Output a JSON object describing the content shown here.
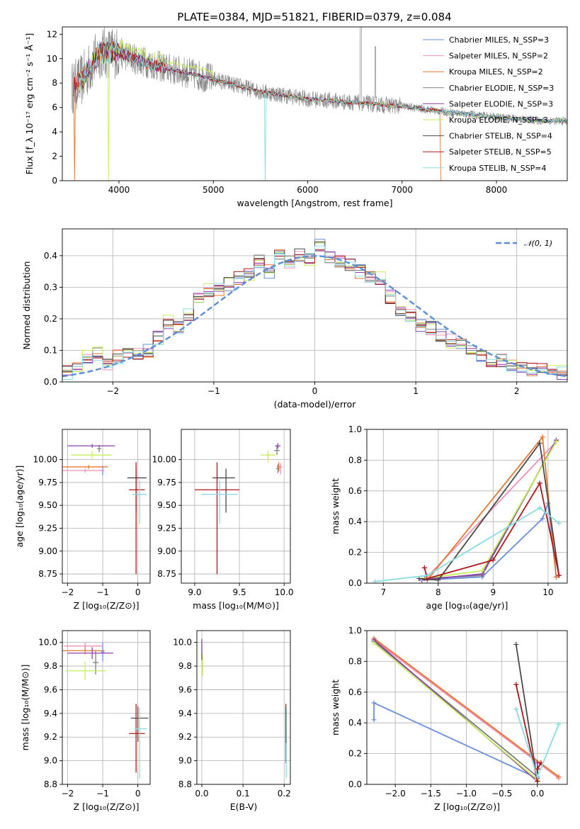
{
  "figure_title": "PLATE=0384, MJD=51821, FIBERID=0379, z=0.084",
  "colors": [
    "#6a8fdc",
    "#f08fb8",
    "#e9762f",
    "#7f7f7f",
    "#8e3fb0",
    "#c6ef5a",
    "#4a4a4a",
    "#b0151b",
    "#88dde2"
  ],
  "chart_data": [
    {
      "id": "spectrum",
      "type": "line",
      "xlabel": "wavelength [Angstrom, rest frame]",
      "ylabel": "Flux [f_λ 10⁻¹⁷ erg cm⁻² s⁻¹ Å⁻¹]",
      "xlim": [
        3400,
        8750
      ],
      "ylim": [
        0,
        12.6
      ],
      "xticks": [
        4000,
        5000,
        6000,
        7000,
        8000
      ],
      "yticks": [
        0,
        2,
        4,
        6,
        8,
        10,
        12
      ],
      "grid": false,
      "legend_position": "top-right",
      "legend": [
        "Chabrier MILES, N_SSP=3",
        "Salpeter MILES, N_SSP=2",
        "Kroupa MILES, N_SSP=2",
        "Chabrier ELODIE, N_SSP=3",
        "Salpeter ELODIE, N_SSP=3",
        "Kroupa ELODIE, N_SSP=3",
        "Chabrier STELIB, N_SSP=4",
        "Salpeter STELIB, N_SSP=5",
        "Kroupa STELIB, N_SSP=4"
      ],
      "data_continuum": {
        "x": [
          3500,
          3600,
          3800,
          4000,
          4200,
          4500,
          4800,
          5000,
          5500,
          6000,
          6500,
          7000,
          7500,
          8000,
          8500,
          8750
        ],
        "y": [
          7.6,
          8.2,
          10.5,
          10.5,
          9.9,
          9.2,
          8.7,
          8.3,
          7.3,
          6.7,
          6.4,
          6.1,
          5.6,
          5.2,
          4.9,
          4.9
        ]
      }
    },
    {
      "id": "residuals",
      "type": "step",
      "xlabel": "(data-model)/error",
      "ylabel": "Normed distribution",
      "xlim": [
        -2.5,
        2.5
      ],
      "ylim": [
        0,
        0.485
      ],
      "xticks": [
        -2,
        -1,
        0,
        1,
        2
      ],
      "yticks": [
        0.0,
        0.1,
        0.2,
        0.3,
        0.4
      ],
      "grid": true,
      "legend_position": "top-right",
      "reference_label": "𝒩(0, 1)",
      "bins": [
        -2.5,
        2.5,
        50
      ],
      "base_hist": [
        0.03,
        0.04,
        0.08,
        0.09,
        0.06,
        0.08,
        0.09,
        0.09,
        0.1,
        0.14,
        0.19,
        0.17,
        0.21,
        0.27,
        0.29,
        0.29,
        0.31,
        0.33,
        0.34,
        0.38,
        0.35,
        0.4,
        0.38,
        0.4,
        0.39,
        0.43,
        0.4,
        0.38,
        0.37,
        0.35,
        0.33,
        0.33,
        0.27,
        0.23,
        0.21,
        0.18,
        0.17,
        0.15,
        0.13,
        0.12,
        0.1,
        0.08,
        0.07,
        0.07,
        0.05,
        0.05,
        0.04,
        0.04,
        0.03,
        0.03
      ]
    },
    {
      "id": "age-vs-Z",
      "type": "errorbar",
      "xlabel": "Z [log₁₀(Z/Z⊙)]",
      "ylabel": "age  [log₁₀(age/yr)]",
      "xlim": [
        -2.15,
        0.35
      ],
      "ylim": [
        8.65,
        10.33
      ],
      "xticks": [
        -2,
        -1,
        0
      ],
      "yticks": [
        8.75,
        9.0,
        9.25,
        9.5,
        9.75,
        10.0
      ],
      "points": [
        {
          "c": 0,
          "x": -1.0,
          "xe": [
            0.05,
            0.05
          ],
          "y": 9.88,
          "ye": [
            0.05,
            0.05
          ]
        },
        {
          "c": 1,
          "x": -1.5,
          "xe": [
            0.65,
            0.55
          ],
          "y": 9.88,
          "ye": [
            0.02,
            0.02
          ]
        },
        {
          "c": 2,
          "x": -1.4,
          "xe": [
            0.75,
            0.55
          ],
          "y": 9.92,
          "ye": [
            0.02,
            0.02
          ]
        },
        {
          "c": 3,
          "x": -1.1,
          "xe": [
            0.06,
            0.06
          ],
          "y": 10.12,
          "ye": [
            0.04,
            0.04
          ]
        },
        {
          "c": 4,
          "x": -1.3,
          "xe": [
            0.7,
            0.65
          ],
          "y": 10.15,
          "ye": [
            0.02,
            0.02
          ]
        },
        {
          "c": 5,
          "x": -1.3,
          "xe": [
            0.6,
            0.55
          ],
          "y": 10.05,
          "ye": [
            0.04,
            0.04
          ]
        },
        {
          "c": 6,
          "x": -0.05,
          "xe": [
            0.25,
            0.3
          ],
          "y": 9.8,
          "ye": [
            0.38,
            0.1
          ]
        },
        {
          "c": 7,
          "x": -0.05,
          "xe": [
            0.2,
            0.25
          ],
          "y": 9.67,
          "ye": [
            0.92,
            0.3
          ]
        },
        {
          "c": 8,
          "x": 0.05,
          "xe": [
            0.2,
            0.2
          ],
          "y": 9.62,
          "ye": [
            0.32,
            0.15
          ]
        }
      ]
    },
    {
      "id": "age-vs-mass",
      "type": "errorbar",
      "xlabel": "mass [log₁₀(M/M⊙)]",
      "ylabel": "",
      "xlim": [
        8.85,
        10.07
      ],
      "ylim": [
        8.65,
        10.33
      ],
      "xticks": [
        9.0,
        9.5,
        10.0
      ],
      "yticks": [
        8.75,
        9.0,
        9.25,
        9.5,
        9.75,
        10.0
      ],
      "points": [
        {
          "c": 0,
          "x": 9.93,
          "xe": [
            0.02,
            0.02
          ],
          "y": 9.9,
          "ye": [
            0.05,
            0.05
          ]
        },
        {
          "c": 1,
          "x": 9.96,
          "xe": [
            0.02,
            0.02
          ],
          "y": 9.92,
          "ye": [
            0.08,
            0.04
          ]
        },
        {
          "c": 2,
          "x": 9.94,
          "xe": [
            0.02,
            0.02
          ],
          "y": 9.92,
          "ye": [
            0.05,
            0.05
          ]
        },
        {
          "c": 3,
          "x": 9.92,
          "xe": [
            0.03,
            0.03
          ],
          "y": 10.1,
          "ye": [
            0.05,
            0.05
          ]
        },
        {
          "c": 4,
          "x": 9.93,
          "xe": [
            0.03,
            0.03
          ],
          "y": 10.15,
          "ye": [
            0.03,
            0.03
          ]
        },
        {
          "c": 5,
          "x": 9.82,
          "xe": [
            0.08,
            0.08
          ],
          "y": 10.05,
          "ye": [
            0.08,
            0.05
          ]
        },
        {
          "c": 6,
          "x": 9.35,
          "xe": [
            0.15,
            0.1
          ],
          "y": 9.8,
          "ye": [
            0.38,
            0.1
          ]
        },
        {
          "c": 7,
          "x": 9.25,
          "xe": [
            0.25,
            0.25
          ],
          "y": 9.67,
          "ye": [
            0.92,
            0.3
          ]
        },
        {
          "c": 8,
          "x": 9.28,
          "xe": [
            0.2,
            0.2
          ],
          "y": 9.62,
          "ye": [
            0.32,
            0.15
          ]
        }
      ]
    },
    {
      "id": "weight-vs-age",
      "type": "line",
      "xlabel": "age  [log₁₀(age/yr)]",
      "ylabel": "mass weight",
      "xlim": [
        6.7,
        10.35
      ],
      "ylim": [
        0,
        1.0
      ],
      "xticks": [
        7,
        8,
        9,
        10
      ],
      "yticks": [
        0.0,
        0.2,
        0.4,
        0.6,
        0.8,
        1.0
      ],
      "series": [
        {
          "c": 0,
          "x": [
            7.7,
            8.8,
            9.9,
            10.0,
            10.15
          ],
          "y": [
            0.02,
            0.04,
            0.42,
            0.52,
            0.04
          ]
        },
        {
          "c": 1,
          "x": [
            7.8,
            10.15
          ],
          "y": [
            0.04,
            0.92
          ]
        },
        {
          "c": 2,
          "x": [
            7.8,
            9.9,
            10.15
          ],
          "y": [
            0.02,
            0.95,
            0.04
          ]
        },
        {
          "c": 3,
          "x": [
            7.75,
            8.8,
            10.15
          ],
          "y": [
            0.03,
            0.05,
            0.93
          ]
        },
        {
          "c": 4,
          "x": [
            7.7,
            8.8,
            10.15
          ],
          "y": [
            0.02,
            0.06,
            0.93
          ]
        },
        {
          "c": 5,
          "x": [
            7.7,
            8.8,
            10.15
          ],
          "y": [
            0.03,
            0.08,
            0.92
          ]
        },
        {
          "c": 6,
          "x": [
            7.65,
            8.0,
            9.85,
            10.2
          ],
          "y": [
            0.03,
            0.02,
            0.91,
            0.05
          ]
        },
        {
          "c": 7,
          "x": [
            7.75,
            7.8,
            9.0,
            9.85,
            10.2
          ],
          "y": [
            0.1,
            0.03,
            0.15,
            0.65,
            0.05
          ]
        },
        {
          "c": 8,
          "x": [
            6.85,
            7.8,
            9.85,
            10.2
          ],
          "y": [
            0.01,
            0.05,
            0.49,
            0.39
          ]
        }
      ]
    },
    {
      "id": "mass-vs-Z",
      "type": "errorbar",
      "xlabel": "Z [log₁₀(Z/Z⊙)]",
      "ylabel": "mass [log₁₀(M/M⊙)]",
      "xlim": [
        -2.15,
        0.35
      ],
      "ylim": [
        8.8,
        10.1
      ],
      "xticks": [
        -2,
        -1,
        0
      ],
      "yticks": [
        8.8,
        9.0,
        9.2,
        9.4,
        9.6,
        9.8,
        10.0
      ],
      "points": [
        {
          "c": 0,
          "x": -1.0,
          "xe": [
            0.05,
            0.05
          ],
          "y": 9.92,
          "ye": [
            0.08,
            0.08
          ]
        },
        {
          "c": 1,
          "x": -1.5,
          "xe": [
            0.6,
            0.5
          ],
          "y": 9.97,
          "ye": [
            0.03,
            0.03
          ]
        },
        {
          "c": 2,
          "x": -1.5,
          "xe": [
            0.65,
            0.55
          ],
          "y": 9.93,
          "ye": [
            0.03,
            0.03
          ]
        },
        {
          "c": 3,
          "x": -1.2,
          "xe": [
            0.08,
            0.08
          ],
          "y": 9.83,
          "ye": [
            0.1,
            0.1
          ]
        },
        {
          "c": 4,
          "x": -1.3,
          "xe": [
            0.7,
            0.6
          ],
          "y": 9.91,
          "ye": [
            0.05,
            0.05
          ]
        },
        {
          "c": 5,
          "x": -1.5,
          "xe": [
            0.55,
            0.6
          ],
          "y": 9.76,
          "ye": [
            0.08,
            0.08
          ]
        },
        {
          "c": 6,
          "x": 0.0,
          "xe": [
            0.2,
            0.3
          ],
          "y": 9.36,
          "ye": [
            0.2,
            0.1
          ]
        },
        {
          "c": 7,
          "x": -0.05,
          "xe": [
            0.2,
            0.25
          ],
          "y": 9.23,
          "ye": [
            0.33,
            0.25
          ]
        },
        {
          "c": 8,
          "x": 0.05,
          "xe": [
            0.15,
            0.2
          ],
          "y": 9.27,
          "ye": [
            0.42,
            0.18
          ]
        }
      ]
    },
    {
      "id": "mass-vs-ebv",
      "type": "errorbar",
      "xlabel": "E(B-V)",
      "ylabel": "",
      "xlim": [
        -0.012,
        0.215
      ],
      "ylim": [
        8.8,
        10.1
      ],
      "xticks": [
        0.0,
        0.1,
        0.2
      ],
      "yticks": [
        8.8,
        9.0,
        9.2,
        9.4,
        9.6,
        9.8,
        10.0
      ],
      "points": [
        {
          "c": 0,
          "x": 0.0,
          "xe": [
            0.0,
            0.0
          ],
          "y": 9.92,
          "ye": [
            0.06,
            0.06
          ]
        },
        {
          "c": 4,
          "x": 0.0,
          "xe": [
            0.0,
            0.0
          ],
          "y": 9.95,
          "ye": [
            0.1,
            0.08
          ]
        },
        {
          "c": 5,
          "x": 0.002,
          "xe": [
            0.0,
            0.0
          ],
          "y": 9.8,
          "ye": [
            0.08,
            0.1
          ]
        },
        {
          "c": 7,
          "x": 0.204,
          "xe": [
            0.0,
            0.0
          ],
          "y": 9.23,
          "ye": [
            0.25,
            0.25
          ]
        },
        {
          "c": 8,
          "x": 0.205,
          "xe": [
            0.0,
            0.0
          ],
          "y": 9.15,
          "ye": [
            0.3,
            0.3
          ]
        },
        {
          "c": 6,
          "x": 0.204,
          "xe": [
            0.0,
            0.0
          ],
          "y": 9.3,
          "ye": [
            0.15,
            0.15
          ]
        }
      ]
    },
    {
      "id": "weight-vs-Z",
      "type": "line",
      "xlabel": "Z [log₁₀(Z/Z⊙)]",
      "ylabel": "mass weight",
      "xlim": [
        -2.4,
        0.42
      ],
      "ylim": [
        0,
        1.0
      ],
      "xticks": [
        -2.0,
        -1.5,
        -1.0,
        -0.5,
        0.0
      ],
      "yticks": [
        0.0,
        0.2,
        0.4,
        0.6,
        0.8,
        1.0
      ],
      "series": [
        {
          "c": 0,
          "x": [
            -2.3,
            -2.3,
            0.0,
            0.0
          ],
          "y": [
            0.42,
            0.53,
            0.04,
            0.04
          ]
        },
        {
          "c": 1,
          "x": [
            -2.3,
            0.3
          ],
          "y": [
            0.94,
            0.04
          ]
        },
        {
          "c": 2,
          "x": [
            -2.3,
            0.3
          ],
          "y": [
            0.95,
            0.05
          ]
        },
        {
          "c": 3,
          "x": [
            -2.3,
            0.0
          ],
          "y": [
            0.93,
            0.05
          ]
        },
        {
          "c": 4,
          "x": [
            -2.3,
            0.0,
            0.0
          ],
          "y": [
            0.94,
            0.02,
            0.14
          ]
        },
        {
          "c": 5,
          "x": [
            -2.3,
            0.0
          ],
          "y": [
            0.92,
            0.03
          ]
        },
        {
          "c": 6,
          "x": [
            -0.3,
            0.0,
            0.0
          ],
          "y": [
            0.91,
            0.02,
            0.05
          ]
        },
        {
          "c": 7,
          "x": [
            -0.3,
            0.0,
            0.0,
            0.05
          ],
          "y": [
            0.65,
            0.02,
            0.1,
            0.14
          ]
        },
        {
          "c": 8,
          "x": [
            -0.3,
            0.0,
            0.3
          ],
          "y": [
            0.49,
            0.05,
            0.39
          ]
        }
      ]
    }
  ]
}
